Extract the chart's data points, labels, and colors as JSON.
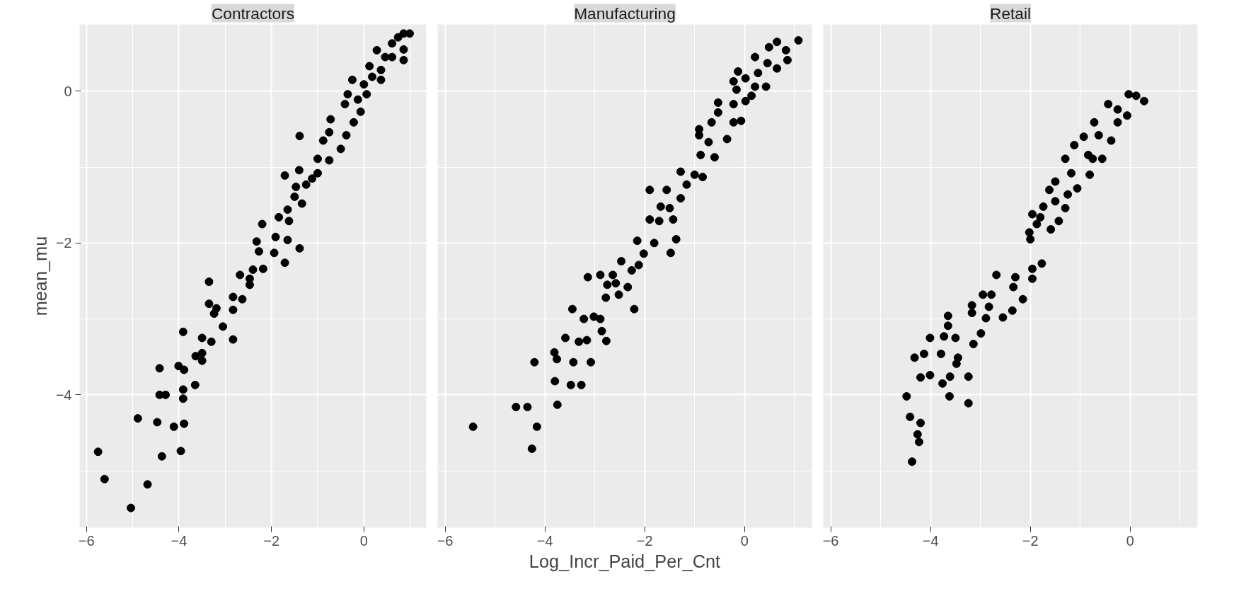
{
  "chart_data": [
    {
      "type": "scatter",
      "title": "Contractors",
      "ylabel": "mean_mu",
      "xlim": [
        -6.15,
        1.35
      ],
      "ylim": [
        -5.75,
        0.88
      ],
      "xticks": [
        -6,
        -4,
        -2,
        0
      ],
      "yticks": [
        -4,
        -2,
        0
      ],
      "grid": true,
      "marker": "circle",
      "x": [
        -5.75,
        -5.61,
        -5.04,
        -4.68,
        -4.89,
        -4.47,
        -4.37,
        -3.96,
        -4.11,
        -3.89,
        -4.42,
        -4.29,
        -3.91,
        -3.91,
        -3.65,
        -4.42,
        -4.01,
        -3.89,
        -3.91,
        -3.64,
        -3.5,
        -3.5,
        -3.5,
        -3.3,
        -3.05,
        -2.83,
        -3.35,
        -3.35,
        -3.19,
        -3.24,
        -2.83,
        -2.83,
        -2.63,
        -2.68,
        -2.47,
        -2.47,
        -2.4,
        -2.18,
        -2.32,
        -2.27,
        -2.2,
        -1.94,
        -1.91,
        -1.65,
        -1.71,
        -1.39,
        -1.84,
        -1.65,
        -1.62,
        -1.71,
        -1.39,
        -1.47,
        -1.34,
        -1.5,
        -1.4,
        -1.25,
        -1.12,
        -1.0,
        -1.0,
        -0.75,
        -0.88,
        -0.75,
        -0.72,
        -0.5,
        -0.38,
        -0.22,
        -0.41,
        -0.35,
        -0.25,
        -0.07,
        0.06,
        0.0,
        0.18,
        0.37,
        0.12,
        0.28,
        0.46,
        0.61,
        0.74,
        0.86,
        0.99,
        0.86,
        0.86,
        0.61,
        -0.13,
        0.37
      ],
      "series": [
        {
          "color": "#000000",
          "values": [
            -4.75,
            -5.11,
            -5.49,
            -5.18,
            -4.31,
            -4.36,
            -4.81,
            -4.74,
            -4.42,
            -4.38,
            -4.0,
            -4.0,
            -3.93,
            -4.05,
            -3.87,
            -3.65,
            -3.62,
            -3.67,
            -3.17,
            -3.49,
            -3.45,
            -3.55,
            -3.25,
            -3.3,
            -3.1,
            -3.27,
            -2.51,
            -2.8,
            -2.86,
            -2.93,
            -2.88,
            -2.71,
            -2.74,
            -2.42,
            -2.47,
            -2.55,
            -2.35,
            -2.34,
            -1.98,
            -2.11,
            -1.75,
            -2.13,
            -1.92,
            -1.96,
            -2.26,
            -2.07,
            -1.66,
            -1.56,
            -1.71,
            -1.11,
            -0.59,
            -1.26,
            -1.48,
            -1.39,
            -1.04,
            -1.23,
            -1.15,
            -1.08,
            -0.89,
            -0.91,
            -0.65,
            -0.54,
            -0.37,
            -0.76,
            -0.58,
            -0.41,
            -0.17,
            -0.04,
            0.15,
            -0.27,
            -0.04,
            0.09,
            0.19,
            0.15,
            0.33,
            0.54,
            0.45,
            0.63,
            0.71,
            0.76,
            0.76,
            0.41,
            0.55,
            0.45,
            -0.11,
            0.28
          ]
        }
      ]
    },
    {
      "type": "scatter",
      "title": "Manufacturing",
      "xlabel": "Log_Incr_Paid_Per_Cnt",
      "xlim": [
        -6.15,
        1.35
      ],
      "ylim": [
        -5.75,
        0.88
      ],
      "xticks": [
        -6,
        -4,
        -2,
        0
      ],
      "yticks": [
        -4,
        -2,
        0
      ],
      "grid": true,
      "marker": "circle",
      "tick_labels": "x",
      "x": [
        -5.44,
        -4.58,
        -4.35,
        -4.26,
        -4.16,
        -3.75,
        -3.8,
        -3.48,
        -3.27,
        -4.21,
        -3.81,
        -3.76,
        -3.43,
        -3.08,
        -3.59,
        -3.32,
        -3.16,
        -2.86,
        -2.77,
        -3.22,
        -3.02,
        -2.89,
        -3.45,
        -2.21,
        -3.14,
        -2.78,
        -2.52,
        -2.75,
        -2.58,
        -2.34,
        -2.89,
        -2.64,
        -2.47,
        -2.26,
        -2.12,
        -2.15,
        -2.02,
        -1.81,
        -1.48,
        -1.37,
        -1.9,
        -1.71,
        -1.43,
        -1.68,
        -1.5,
        -1.9,
        -1.56,
        -1.28,
        -1.28,
        -1.16,
        -1.0,
        -0.84,
        -0.88,
        -0.6,
        -0.91,
        -0.91,
        -0.72,
        -0.66,
        -0.53,
        -0.35,
        -0.22,
        -0.07,
        -0.53,
        -0.22,
        0.02,
        -0.16,
        -0.22,
        -0.13,
        0.02,
        0.21,
        0.43,
        0.27,
        0.21,
        0.46,
        0.65,
        0.49,
        0.65,
        0.83,
        0.86,
        1.08,
        0.14
      ],
      "series": [
        {
          "color": "#000000",
          "values": [
            -4.42,
            -4.16,
            -4.16,
            -4.71,
            -4.42,
            -4.13,
            -3.82,
            -3.87,
            -3.87,
            -3.57,
            -3.44,
            -3.53,
            -3.57,
            -3.57,
            -3.25,
            -3.3,
            -3.28,
            -3.16,
            -3.29,
            -3.0,
            -2.97,
            -3.0,
            -2.87,
            -2.87,
            -2.45,
            -2.72,
            -2.68,
            -2.55,
            -2.53,
            -2.58,
            -2.42,
            -2.42,
            -2.24,
            -2.36,
            -2.29,
            -1.97,
            -2.14,
            -2.0,
            -2.13,
            -1.95,
            -1.69,
            -1.71,
            -1.69,
            -1.52,
            -1.54,
            -1.3,
            -1.3,
            -1.41,
            -1.06,
            -1.23,
            -1.1,
            -1.13,
            -0.84,
            -0.87,
            -0.58,
            -0.5,
            -0.67,
            -0.41,
            -0.28,
            -0.63,
            -0.41,
            -0.39,
            -0.15,
            -0.17,
            -0.13,
            0.02,
            0.13,
            0.26,
            0.17,
            0.06,
            0.06,
            0.24,
            0.45,
            0.37,
            0.3,
            0.58,
            0.65,
            0.54,
            0.41,
            0.67,
            -0.06
          ]
        }
      ]
    },
    {
      "type": "scatter",
      "title": "Retail",
      "xlim": [
        -6.15,
        1.35
      ],
      "ylim": [
        -5.75,
        0.88
      ],
      "xticks": [
        -6,
        -4,
        -2,
        0
      ],
      "yticks": [
        -4,
        -2,
        0
      ],
      "grid": true,
      "marker": "circle",
      "tick_labels": "x",
      "x": [
        -4.37,
        -4.23,
        -4.26,
        -4.2,
        -4.41,
        -4.48,
        -3.62,
        -3.24,
        -3.76,
        -3.61,
        -3.24,
        -4.2,
        -4.01,
        -4.32,
        -4.13,
        -3.79,
        -3.48,
        -3.45,
        -4.01,
        -3.73,
        -3.5,
        -3.65,
        -3.65,
        -3.14,
        -2.99,
        -3.17,
        -2.89,
        -3.17,
        -2.83,
        -2.55,
        -2.36,
        -2.95,
        -2.78,
        -2.68,
        -2.34,
        -2.3,
        -2.15,
        -1.96,
        -1.77,
        -1.96,
        -2.0,
        -2.02,
        -1.96,
        -1.87,
        -1.74,
        -1.59,
        -1.43,
        -1.3,
        -1.62,
        -1.5,
        -1.25,
        -1.06,
        -1.3,
        -1.18,
        -1.12,
        -0.81,
        -0.93,
        -0.75,
        -0.56,
        -0.72,
        -0.63,
        -0.38,
        -0.44,
        -0.25,
        -0.06,
        -0.03,
        0.12,
        0.28,
        -0.25,
        -0.84,
        -1.5,
        -1.8
      ],
      "series": [
        {
          "color": "#000000",
          "values": [
            -4.88,
            -4.62,
            -4.52,
            -4.37,
            -4.29,
            -4.02,
            -4.02,
            -4.11,
            -3.85,
            -3.76,
            -3.76,
            -3.77,
            -3.74,
            -3.51,
            -3.46,
            -3.46,
            -3.59,
            -3.51,
            -3.25,
            -3.23,
            -3.25,
            -2.96,
            -3.09,
            -3.33,
            -3.19,
            -2.92,
            -2.99,
            -2.82,
            -2.84,
            -2.98,
            -2.89,
            -2.68,
            -2.68,
            -2.42,
            -2.58,
            -2.45,
            -2.74,
            -2.47,
            -2.27,
            -2.34,
            -1.95,
            -1.86,
            -1.62,
            -1.75,
            -1.52,
            -1.82,
            -1.71,
            -1.54,
            -1.3,
            -1.19,
            -1.36,
            -1.28,
            -0.89,
            -1.08,
            -0.71,
            -1.1,
            -0.6,
            -0.89,
            -0.89,
            -0.41,
            -0.58,
            -0.65,
            -0.17,
            -0.41,
            -0.32,
            -0.04,
            -0.06,
            -0.13,
            -0.24,
            -0.84,
            -1.45,
            -1.66
          ]
        }
      ]
    }
  ]
}
